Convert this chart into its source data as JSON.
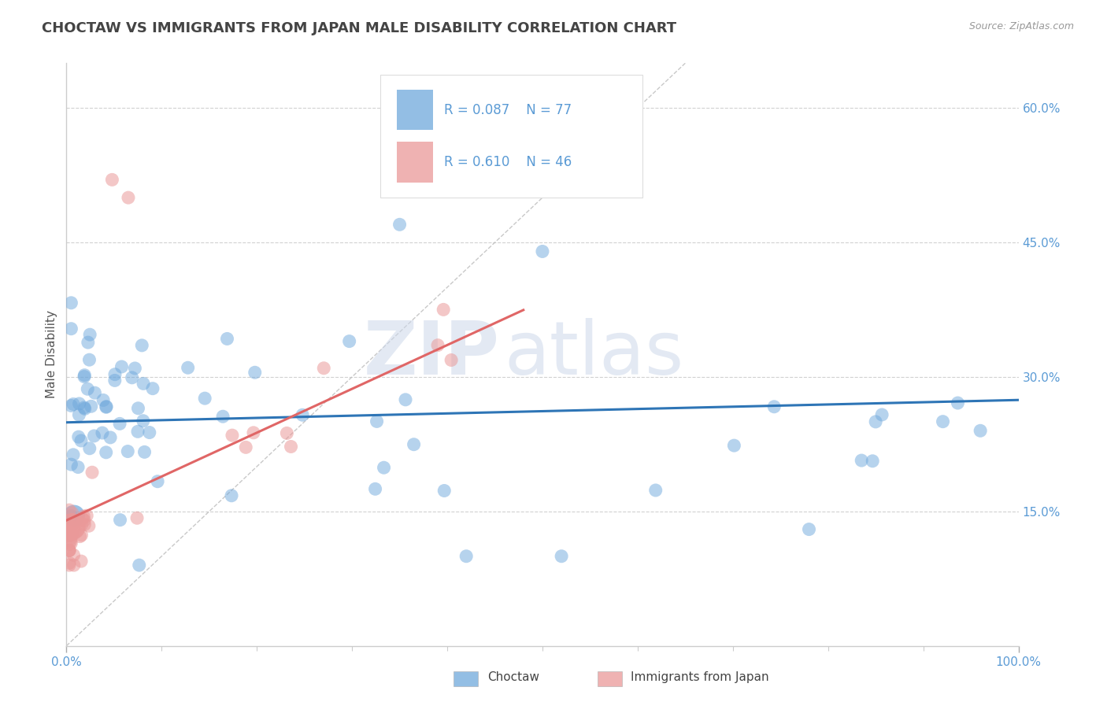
{
  "title": "CHOCTAW VS IMMIGRANTS FROM JAPAN MALE DISABILITY CORRELATION CHART",
  "source": "Source: ZipAtlas.com",
  "ylabel": "Male Disability",
  "xlim": [
    0.0,
    1.0
  ],
  "ylim": [
    0.0,
    0.65
  ],
  "yticks": [
    0.15,
    0.3,
    0.45,
    0.6
  ],
  "yticklabels": [
    "15.0%",
    "30.0%",
    "45.0%",
    "60.0%"
  ],
  "choctaw_color": "#6fa8dc",
  "japan_color": "#ea9999",
  "choctaw_line_color": "#2e75b6",
  "japan_line_color": "#e06666",
  "choctaw_R": 0.087,
  "choctaw_N": 77,
  "japan_R": 0.61,
  "japan_N": 46,
  "legend_label1": "Choctaw",
  "legend_label2": "Immigrants from Japan",
  "watermark_zip": "ZIP",
  "watermark_atlas": "atlas",
  "background_color": "#ffffff",
  "grid_color": "#cccccc",
  "title_color": "#444444",
  "axis_color": "#5b9bd5",
  "tick_label_color": "#5b9bd5"
}
